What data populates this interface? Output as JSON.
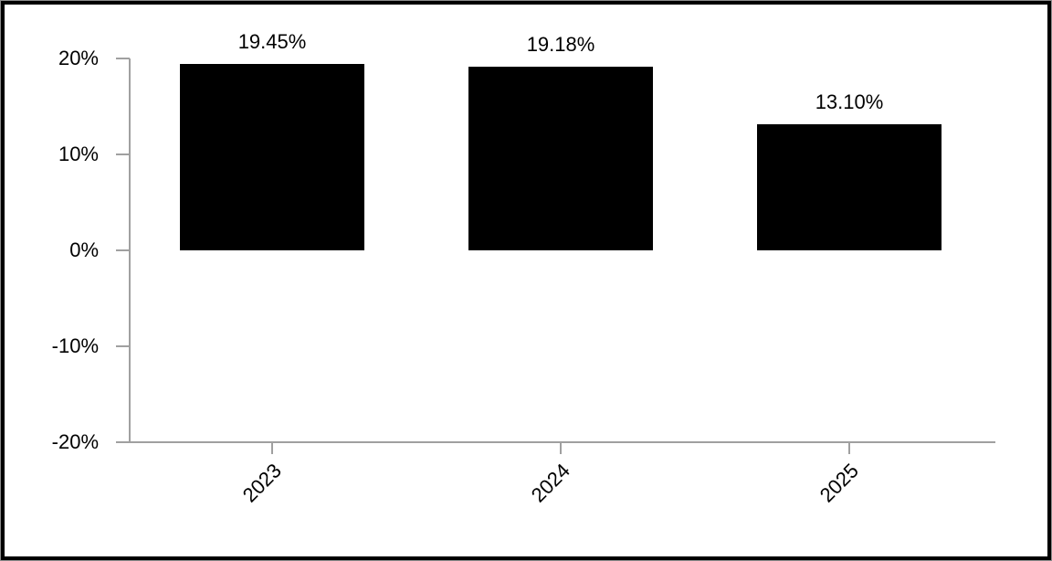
{
  "chart_data": {
    "type": "bar",
    "categories": [
      "2023",
      "2024",
      "2025"
    ],
    "values": [
      19.45,
      19.18,
      13.1
    ],
    "data_labels": [
      "19.45%",
      "19.18%",
      "13.10%"
    ],
    "title": "",
    "xlabel": "",
    "ylabel": "",
    "ylim": [
      -20,
      20
    ],
    "y_ticks": [
      {
        "value": 20,
        "label": "20%"
      },
      {
        "value": 10,
        "label": "10%"
      },
      {
        "value": 0,
        "label": "0%"
      },
      {
        "value": -10,
        "label": "-10%"
      },
      {
        "value": -20,
        "label": "-20%"
      }
    ],
    "grid": false,
    "legend": false,
    "colors": {
      "bar": "#000000",
      "axis": "#a0a0a0",
      "text": "#000000",
      "background": "#ffffff",
      "frame": "#000000"
    }
  }
}
